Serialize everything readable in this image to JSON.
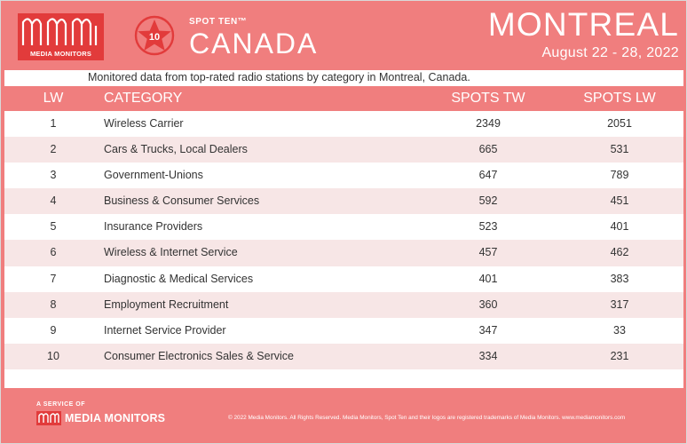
{
  "header": {
    "logo_text": "MEDIA MONITORS",
    "badge_number": "10",
    "spot_ten": "SPOT TEN™",
    "country": "CANADA",
    "city": "MONTREAL",
    "dates": "August 22 - 28, 2022"
  },
  "subtitle": "Monitored data from top-rated radio stations by category in Montreal, Canada.",
  "columns": {
    "lw": "LW",
    "category": "CATEGORY",
    "spots_tw": "SPOTS TW",
    "spots_lw": "SPOTS LW"
  },
  "rows": [
    {
      "lw": "1",
      "category": "Wireless Carrier",
      "spots_tw": "2349",
      "spots_lw": "2051"
    },
    {
      "lw": "2",
      "category": "Cars & Trucks, Local Dealers",
      "spots_tw": "665",
      "spots_lw": "531"
    },
    {
      "lw": "3",
      "category": "Government-Unions",
      "spots_tw": "647",
      "spots_lw": "789"
    },
    {
      "lw": "4",
      "category": "Business & Consumer Services",
      "spots_tw": "592",
      "spots_lw": "451"
    },
    {
      "lw": "5",
      "category": "Insurance Providers",
      "spots_tw": "523",
      "spots_lw": "401"
    },
    {
      "lw": "6",
      "category": "Wireless & Internet Service",
      "spots_tw": "457",
      "spots_lw": "462"
    },
    {
      "lw": "7",
      "category": "Diagnostic & Medical Services",
      "spots_tw": "401",
      "spots_lw": "383"
    },
    {
      "lw": "8",
      "category": "Employment Recruitment",
      "spots_tw": "360",
      "spots_lw": "317"
    },
    {
      "lw": "9",
      "category": "Internet Service Provider",
      "spots_tw": "347",
      "spots_lw": "33"
    },
    {
      "lw": "10",
      "category": "Consumer Electronics Sales & Service",
      "spots_tw": "334",
      "spots_lw": "231"
    }
  ],
  "footer": {
    "service_of": "A SERVICE OF",
    "brand": "MEDIA MONITORS",
    "copyright": "© 2022 Media Monitors. All Rights Reserved. Media Monitors, Spot Ten and their logos are registered trademarks of Media Monitors. www.mediamonitors.com"
  },
  "colors": {
    "primary": "#f07e7e",
    "logo_red": "#e23b3b",
    "alt_row": "#f7e6e6"
  }
}
